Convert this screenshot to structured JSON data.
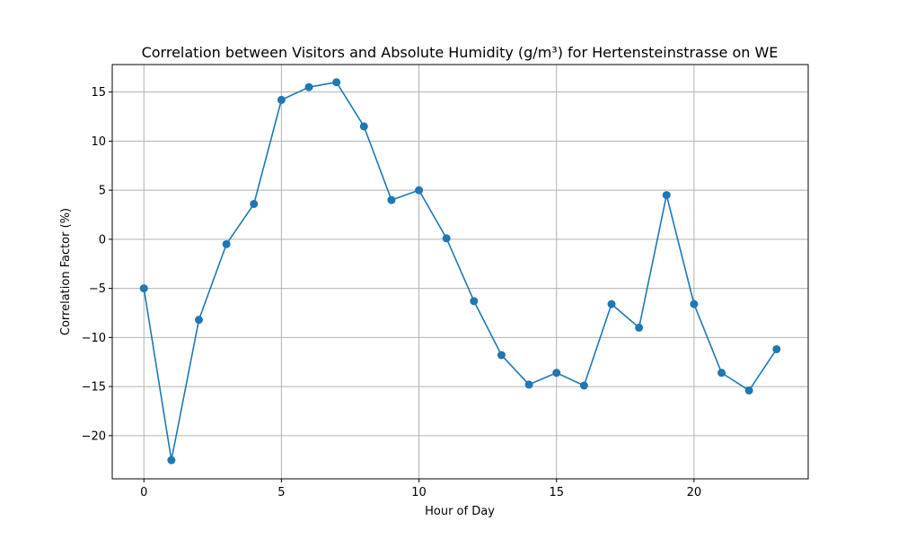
{
  "chart_data": {
    "type": "line",
    "title": "Correlation between Visitors and Absolute Humidity (g/m³) for Hertensteinstrasse on WE",
    "xlabel": "Hour of Day",
    "ylabel": "Correlation Factor (%)",
    "x": [
      0,
      1,
      2,
      3,
      4,
      5,
      6,
      7,
      8,
      9,
      10,
      11,
      12,
      13,
      14,
      15,
      16,
      17,
      18,
      19,
      20,
      21,
      22,
      23
    ],
    "series": [
      {
        "values": [
          -5.0,
          -22.5,
          -8.2,
          -0.5,
          3.6,
          14.2,
          15.5,
          16.0,
          11.5,
          4.0,
          5.0,
          0.1,
          -6.3,
          -11.8,
          -14.8,
          -13.6,
          -14.9,
          -6.6,
          -9.0,
          4.5,
          -6.6,
          -13.6,
          -15.4,
          -11.2
        ],
        "color": "#1f77b4"
      }
    ],
    "xticks": [
      0,
      5,
      10,
      15,
      20
    ],
    "yticks": [
      -20,
      -15,
      -10,
      -5,
      0,
      5,
      10,
      15
    ],
    "xtick_labels": [
      "0",
      "5",
      "10",
      "15",
      "20"
    ],
    "ytick_labels": [
      "−20",
      "−15",
      "−10",
      "−5",
      "0",
      "5",
      "10",
      "15"
    ],
    "xlim": [
      -1.15,
      24.15
    ],
    "ylim": [
      -24.4,
      17.8
    ],
    "grid": true,
    "marker": "circle"
  }
}
